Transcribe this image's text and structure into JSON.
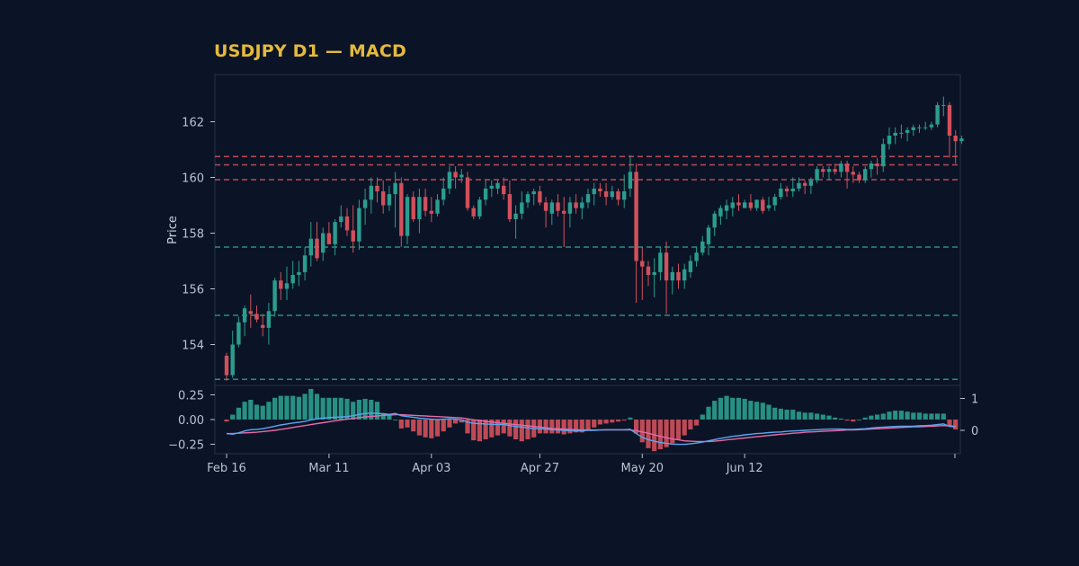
{
  "title": "USDJPY D1 — MACD",
  "colors": {
    "background": "#0b1426",
    "title": "#e5b93c",
    "up": "#2a9d8f",
    "down": "#d1505c",
    "macd_line": "#5aa7f0",
    "signal_line": "#e86aa8",
    "frame": "#243248",
    "tick": "#b8c2d0"
  },
  "chart_data": {
    "type": "candlestick",
    "title": "USDJPY D1 — MACD",
    "price_panel": {
      "ylabel": "Price",
      "ylim": [
        152.5,
        163.3
      ],
      "yticks": [
        "154",
        "156",
        "158",
        "160",
        "162"
      ],
      "resistance_levels": [
        160.75,
        160.45,
        159.92
      ],
      "support_levels": [
        157.5,
        155.05,
        152.75
      ],
      "ohlc": [
        [
          153.6,
          153.7,
          152.7,
          152.9
        ],
        [
          152.9,
          154.5,
          152.8,
          154.0
        ],
        [
          154.0,
          155.0,
          153.9,
          154.8
        ],
        [
          154.8,
          155.4,
          154.3,
          155.3
        ],
        [
          155.2,
          155.8,
          154.6,
          155.1
        ],
        [
          155.1,
          155.4,
          154.8,
          154.9
        ],
        [
          154.7,
          155.1,
          154.3,
          154.6
        ],
        [
          154.6,
          155.5,
          154.0,
          155.2
        ],
        [
          155.2,
          156.4,
          155.0,
          156.3
        ],
        [
          156.3,
          156.6,
          155.6,
          156.0
        ],
        [
          156.0,
          156.8,
          155.6,
          156.2
        ],
        [
          156.2,
          157.0,
          156.0,
          156.5
        ],
        [
          156.5,
          157.0,
          156.1,
          156.6
        ],
        [
          156.6,
          157.5,
          156.3,
          157.2
        ],
        [
          157.2,
          158.4,
          156.8,
          157.8
        ],
        [
          157.8,
          158.4,
          157.0,
          157.1
        ],
        [
          157.3,
          158.2,
          157.0,
          158.0
        ],
        [
          158.0,
          158.4,
          157.6,
          157.6
        ],
        [
          157.6,
          158.5,
          157.2,
          158.4
        ],
        [
          158.4,
          159.0,
          158.2,
          158.6
        ],
        [
          158.6,
          158.9,
          157.9,
          158.1
        ],
        [
          158.1,
          159.0,
          157.3,
          157.7
        ],
        [
          157.7,
          159.2,
          157.4,
          158.9
        ],
        [
          158.9,
          159.6,
          158.3,
          159.2
        ],
        [
          159.2,
          160.0,
          158.7,
          159.7
        ],
        [
          159.7,
          160.0,
          159.1,
          159.5
        ],
        [
          159.5,
          159.9,
          158.7,
          159.0
        ],
        [
          159.0,
          159.7,
          158.8,
          159.4
        ],
        [
          159.4,
          160.2,
          158.2,
          159.8
        ],
        [
          159.8,
          160.0,
          157.5,
          157.9
        ],
        [
          157.9,
          159.4,
          157.6,
          159.3
        ],
        [
          159.3,
          159.5,
          158.4,
          158.5
        ],
        [
          158.5,
          159.6,
          158.0,
          159.3
        ],
        [
          159.3,
          159.6,
          158.6,
          158.8
        ],
        [
          158.8,
          159.3,
          158.4,
          158.7
        ],
        [
          158.7,
          159.4,
          158.6,
          159.2
        ],
        [
          159.2,
          160.0,
          159.0,
          159.6
        ],
        [
          159.6,
          160.4,
          159.4,
          160.2
        ],
        [
          160.2,
          160.4,
          159.6,
          160.0
        ],
        [
          160.0,
          160.3,
          159.8,
          160.1
        ],
        [
          160.0,
          160.2,
          158.8,
          158.9
        ],
        [
          158.9,
          159.0,
          158.5,
          158.6
        ],
        [
          158.6,
          159.3,
          158.5,
          159.2
        ],
        [
          159.2,
          159.9,
          159.0,
          159.6
        ],
        [
          159.6,
          159.9,
          159.3,
          159.7
        ],
        [
          159.6,
          159.9,
          159.4,
          159.8
        ],
        [
          159.7,
          160.0,
          159.2,
          159.4
        ],
        [
          159.4,
          159.9,
          158.4,
          158.5
        ],
        [
          158.5,
          159.0,
          157.8,
          158.7
        ],
        [
          158.7,
          159.5,
          158.5,
          159.1
        ],
        [
          159.1,
          159.5,
          158.9,
          159.4
        ],
        [
          159.4,
          159.6,
          159.0,
          159.5
        ],
        [
          159.5,
          159.7,
          159.0,
          159.1
        ],
        [
          159.1,
          159.3,
          158.2,
          158.8
        ],
        [
          158.7,
          159.2,
          158.3,
          159.1
        ],
        [
          159.1,
          159.4,
          158.6,
          158.8
        ],
        [
          158.8,
          159.3,
          157.5,
          158.7
        ],
        [
          158.7,
          159.3,
          158.2,
          159.1
        ],
        [
          159.1,
          159.4,
          158.7,
          158.9
        ],
        [
          158.9,
          159.3,
          158.5,
          159.1
        ],
        [
          159.1,
          159.6,
          158.9,
          159.4
        ],
        [
          159.4,
          159.8,
          159.0,
          159.6
        ],
        [
          159.6,
          159.8,
          159.3,
          159.5
        ],
        [
          159.5,
          159.8,
          159.0,
          159.3
        ],
        [
          159.3,
          159.7,
          159.2,
          159.5
        ],
        [
          159.5,
          159.6,
          159.0,
          159.2
        ],
        [
          159.2,
          160.1,
          158.9,
          159.5
        ],
        [
          159.6,
          160.8,
          159.3,
          160.2
        ],
        [
          160.2,
          160.5,
          155.5,
          157.0
        ],
        [
          157.0,
          157.5,
          155.6,
          156.8
        ],
        [
          156.8,
          157.0,
          156.1,
          156.5
        ],
        [
          156.5,
          157.1,
          155.7,
          156.6
        ],
        [
          156.6,
          157.5,
          156.3,
          157.3
        ],
        [
          157.3,
          157.7,
          155.1,
          156.3
        ],
        [
          156.3,
          156.8,
          155.8,
          156.6
        ],
        [
          156.6,
          156.9,
          156.0,
          156.3
        ],
        [
          156.3,
          156.9,
          156.0,
          156.7
        ],
        [
          156.6,
          157.2,
          156.4,
          157.0
        ],
        [
          157.0,
          157.5,
          156.8,
          157.3
        ],
        [
          157.3,
          157.9,
          157.2,
          157.7
        ],
        [
          157.6,
          158.3,
          157.2,
          158.2
        ],
        [
          158.2,
          158.8,
          157.9,
          158.7
        ],
        [
          158.6,
          159.0,
          158.3,
          158.9
        ],
        [
          158.8,
          159.2,
          158.5,
          159.0
        ],
        [
          158.9,
          159.3,
          158.6,
          159.1
        ],
        [
          159.1,
          159.4,
          158.8,
          159.0
        ],
        [
          158.9,
          159.2,
          158.9,
          159.1
        ],
        [
          159.1,
          159.4,
          158.8,
          158.9
        ],
        [
          158.9,
          159.2,
          158.8,
          159.2
        ],
        [
          159.2,
          159.3,
          158.7,
          158.8
        ],
        [
          158.9,
          159.3,
          158.8,
          159.0
        ],
        [
          159.0,
          159.4,
          158.8,
          159.3
        ],
        [
          159.3,
          159.8,
          159.2,
          159.6
        ],
        [
          159.6,
          159.7,
          159.3,
          159.5
        ],
        [
          159.5,
          160.0,
          159.3,
          159.6
        ],
        [
          159.6,
          160.0,
          159.5,
          159.8
        ],
        [
          159.8,
          159.9,
          159.4,
          159.7
        ],
        [
          159.7,
          160.0,
          159.4,
          159.9
        ],
        [
          159.9,
          160.4,
          159.8,
          160.3
        ],
        [
          160.3,
          160.4,
          160.0,
          160.2
        ],
        [
          160.2,
          160.4,
          159.9,
          160.3
        ],
        [
          160.3,
          160.5,
          160.1,
          160.2
        ],
        [
          160.2,
          160.6,
          160.0,
          160.5
        ],
        [
          160.5,
          160.6,
          159.6,
          160.2
        ],
        [
          160.2,
          160.4,
          159.8,
          160.1
        ],
        [
          160.1,
          160.2,
          159.8,
          159.9
        ],
        [
          159.9,
          160.4,
          159.8,
          160.3
        ],
        [
          160.3,
          160.6,
          160.0,
          160.5
        ],
        [
          160.5,
          160.7,
          160.1,
          160.4
        ],
        [
          160.4,
          161.4,
          160.2,
          161.2
        ],
        [
          161.2,
          161.8,
          161.0,
          161.5
        ],
        [
          161.5,
          161.8,
          161.2,
          161.6
        ],
        [
          161.6,
          161.9,
          161.4,
          161.6
        ],
        [
          161.6,
          161.8,
          161.3,
          161.7
        ],
        [
          161.7,
          161.9,
          161.5,
          161.8
        ],
        [
          161.8,
          161.9,
          161.6,
          161.8
        ],
        [
          161.8,
          162.0,
          161.7,
          161.8
        ],
        [
          161.8,
          162.0,
          161.7,
          161.9
        ],
        [
          161.9,
          162.7,
          161.8,
          162.6
        ],
        [
          162.6,
          162.9,
          162.2,
          162.6
        ],
        [
          162.6,
          162.7,
          160.7,
          161.5
        ],
        [
          161.5,
          161.7,
          160.5,
          161.3
        ],
        [
          161.3,
          161.5,
          161.2,
          161.4
        ]
      ]
    },
    "macd_panel": {
      "left_yticks": [
        "0.25",
        "0.00",
        "−0.25"
      ],
      "right_yticks": [
        "1",
        "0"
      ],
      "histogram": [
        -0.02,
        0.05,
        0.12,
        0.18,
        0.2,
        0.15,
        0.14,
        0.18,
        0.22,
        0.24,
        0.24,
        0.24,
        0.23,
        0.26,
        0.31,
        0.26,
        0.22,
        0.22,
        0.22,
        0.22,
        0.21,
        0.18,
        0.2,
        0.21,
        0.2,
        0.18,
        0.06,
        0.06,
        0.0,
        -0.09,
        -0.08,
        -0.12,
        -0.16,
        -0.18,
        -0.19,
        -0.17,
        -0.12,
        -0.08,
        -0.04,
        -0.03,
        -0.14,
        -0.21,
        -0.22,
        -0.2,
        -0.18,
        -0.16,
        -0.14,
        -0.17,
        -0.2,
        -0.22,
        -0.2,
        -0.18,
        -0.14,
        -0.14,
        -0.14,
        -0.14,
        -0.15,
        -0.14,
        -0.13,
        -0.13,
        -0.1,
        -0.08,
        -0.05,
        -0.04,
        -0.03,
        -0.02,
        -0.01,
        0.02,
        -0.14,
        -0.23,
        -0.29,
        -0.32,
        -0.3,
        -0.28,
        -0.24,
        -0.2,
        -0.16,
        -0.1,
        -0.06,
        0.05,
        0.13,
        0.19,
        0.22,
        0.24,
        0.22,
        0.22,
        0.21,
        0.19,
        0.18,
        0.17,
        0.15,
        0.12,
        0.11,
        0.1,
        0.1,
        0.08,
        0.07,
        0.07,
        0.06,
        0.05,
        0.04,
        0.02,
        0.01,
        -0.01,
        -0.02,
        0.0,
        0.02,
        0.04,
        0.05,
        0.06,
        0.08,
        0.09,
        0.09,
        0.08,
        0.07,
        0.07,
        0.06,
        0.06,
        0.06,
        0.06,
        -0.06,
        -0.1
      ],
      "macd": [
        -0.1,
        -0.12,
        -0.08,
        -0.02,
        0.02,
        0.03,
        0.05,
        0.09,
        0.13,
        0.17,
        0.2,
        0.23,
        0.25,
        0.28,
        0.33,
        0.36,
        0.38,
        0.4,
        0.41,
        0.42,
        0.43,
        0.46,
        0.5,
        0.53,
        0.54,
        0.53,
        0.52,
        0.5,
        0.53,
        0.46,
        0.43,
        0.41,
        0.38,
        0.37,
        0.35,
        0.34,
        0.35,
        0.36,
        0.35,
        0.33,
        0.26,
        0.22,
        0.21,
        0.2,
        0.19,
        0.18,
        0.18,
        0.15,
        0.12,
        0.1,
        0.08,
        0.06,
        0.05,
        0.04,
        0.02,
        0.01,
        0.0,
        -0.01,
        -0.02,
        -0.01,
        0.0,
        0.0,
        0.01,
        0.02,
        0.02,
        0.02,
        0.02,
        0.03,
        -0.1,
        -0.22,
        -0.29,
        -0.34,
        -0.38,
        -0.41,
        -0.43,
        -0.44,
        -0.44,
        -0.42,
        -0.4,
        -0.37,
        -0.33,
        -0.29,
        -0.25,
        -0.22,
        -0.19,
        -0.17,
        -0.14,
        -0.12,
        -0.1,
        -0.09,
        -0.07,
        -0.06,
        -0.05,
        -0.03,
        -0.02,
        -0.01,
        0.0,
        0.01,
        0.02,
        0.03,
        0.04,
        0.04,
        0.04,
        0.03,
        0.03,
        0.04,
        0.05,
        0.07,
        0.09,
        0.1,
        0.11,
        0.12,
        0.13,
        0.13,
        0.13,
        0.14,
        0.15,
        0.16,
        0.18,
        0.2,
        0.12,
        0.11
      ],
      "signal": [
        -0.1,
        -0.1,
        -0.09,
        -0.08,
        -0.07,
        -0.06,
        -0.04,
        -0.02,
        0.0,
        0.03,
        0.06,
        0.09,
        0.12,
        0.15,
        0.18,
        0.21,
        0.24,
        0.27,
        0.3,
        0.32,
        0.35,
        0.37,
        0.4,
        0.42,
        0.44,
        0.45,
        0.47,
        0.48,
        0.49,
        0.49,
        0.48,
        0.47,
        0.46,
        0.45,
        0.44,
        0.43,
        0.42,
        0.41,
        0.4,
        0.39,
        0.36,
        0.33,
        0.31,
        0.28,
        0.26,
        0.24,
        0.22,
        0.2,
        0.18,
        0.16,
        0.14,
        0.12,
        0.1,
        0.08,
        0.06,
        0.05,
        0.04,
        0.03,
        0.02,
        0.01,
        0.01,
        0.01,
        0.01,
        0.01,
        0.01,
        0.01,
        0.01,
        0.01,
        -0.01,
        -0.05,
        -0.09,
        -0.14,
        -0.19,
        -0.23,
        -0.27,
        -0.3,
        -0.33,
        -0.34,
        -0.35,
        -0.35,
        -0.35,
        -0.34,
        -0.32,
        -0.3,
        -0.28,
        -0.26,
        -0.24,
        -0.22,
        -0.2,
        -0.18,
        -0.16,
        -0.14,
        -0.12,
        -0.11,
        -0.09,
        -0.08,
        -0.06,
        -0.05,
        -0.04,
        -0.03,
        -0.02,
        -0.01,
        0.0,
        0.01,
        0.01,
        0.02,
        0.03,
        0.04,
        0.05,
        0.06,
        0.07,
        0.08,
        0.09,
        0.1,
        0.11,
        0.11,
        0.12,
        0.13,
        0.14,
        0.15,
        0.14,
        0.13
      ]
    },
    "xticks": [
      {
        "label": "Feb 16",
        "index": 0
      },
      {
        "label": "Mar 11",
        "index": 17
      },
      {
        "label": "Apr 03",
        "index": 34
      },
      {
        "label": "Apr 27",
        "index": 52
      },
      {
        "label": "May 20",
        "index": 69
      },
      {
        "label": "Jun 12",
        "index": 86
      }
    ]
  }
}
